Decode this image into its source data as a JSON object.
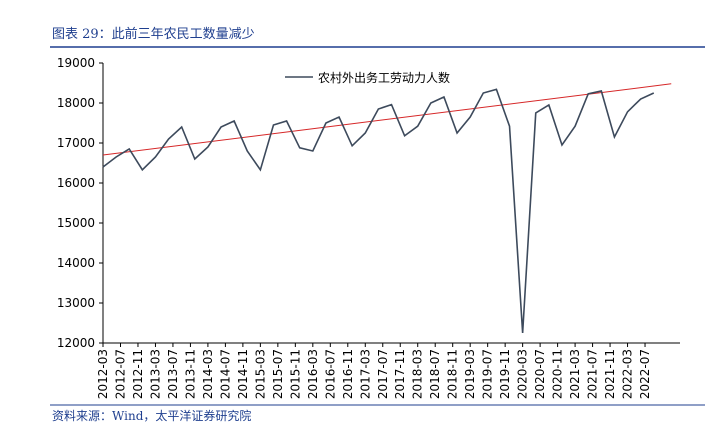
{
  "chart_data": {
    "type": "line",
    "title": "图表 29：此前三年农民工数量减少",
    "source": "资料来源：Wind，太平洋证券研究院",
    "x": [
      "2012-03",
      "2012-06",
      "2012-09",
      "2012-12",
      "2013-03",
      "2013-06",
      "2013-09",
      "2013-12",
      "2014-03",
      "2014-06",
      "2014-09",
      "2014-12",
      "2015-03",
      "2015-06",
      "2015-09",
      "2015-12",
      "2016-03",
      "2016-06",
      "2016-09",
      "2016-12",
      "2017-03",
      "2017-06",
      "2017-09",
      "2017-12",
      "2018-03",
      "2018-06",
      "2018-09",
      "2018-12",
      "2019-03",
      "2019-06",
      "2019-09",
      "2019-12",
      "2020-03",
      "2020-06",
      "2020-09",
      "2020-12",
      "2021-03",
      "2021-06",
      "2021-09",
      "2021-12",
      "2022-03",
      "2022-06",
      "2022-09"
    ],
    "series": [
      {
        "name": "农村外出务工劳动力人数",
        "color": "#3d4a5c",
        "values": [
          16400,
          16650,
          16850,
          16330,
          16650,
          17100,
          17400,
          16600,
          16900,
          17400,
          17550,
          16800,
          16330,
          17450,
          17550,
          16880,
          16800,
          17500,
          17650,
          16930,
          17250,
          17850,
          17960,
          17180,
          17420,
          18000,
          18150,
          17250,
          17650,
          18250,
          18340,
          17420,
          12250,
          17750,
          17950,
          16950,
          17420,
          18230,
          18300,
          17150,
          17780,
          18100,
          18250
        ]
      }
    ],
    "trend": {
      "color": "#d62728",
      "x": [
        "2012-03",
        "2023-01"
      ],
      "values": [
        16700,
        18480
      ]
    },
    "xlim": [
      "2012-03",
      "2023-03"
    ],
    "xticks": [
      "2012-03",
      "2012-07",
      "2012-11",
      "2013-03",
      "2013-07",
      "2013-11",
      "2014-03",
      "2014-07",
      "2014-11",
      "2015-03",
      "2015-07",
      "2015-11",
      "2016-03",
      "2016-07",
      "2016-11",
      "2017-03",
      "2017-07",
      "2017-11",
      "2018-03",
      "2018-07",
      "2018-11",
      "2019-03",
      "2019-07",
      "2019-11",
      "2020-03",
      "2020-07",
      "2020-11",
      "2021-03",
      "2021-07",
      "2021-11",
      "2022-03",
      "2022-07"
    ],
    "ylim": [
      12000,
      19000
    ],
    "yticks": [
      12000,
      13000,
      14000,
      15000,
      16000,
      17000,
      18000,
      19000
    ],
    "grid": false
  }
}
